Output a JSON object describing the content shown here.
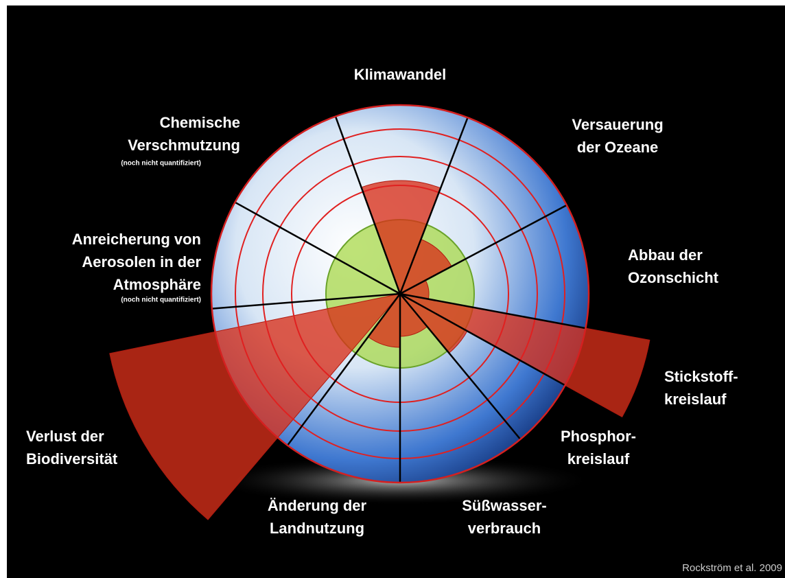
{
  "nodes": [
    {
      "lines": [
        "Klimawandel"
      ]
    },
    {
      "lines": [
        "Versauerung",
        "der Ozeane"
      ]
    },
    {
      "lines": [
        "Abbau der",
        "Ozonschicht"
      ]
    },
    {
      "lines": [
        "Stickstoff-",
        "kreislauf"
      ]
    },
    {
      "lines": [
        "Phosphor-",
        "kreislauf"
      ]
    },
    {
      "lines": [
        "Süßwasser-",
        "verbrauch"
      ]
    },
    {
      "lines": [
        "Änderung der",
        "Landnutzung"
      ]
    },
    {
      "lines": [
        "Verlust der",
        "Biodiversität"
      ]
    },
    {
      "lines": [
        "Anreicherung von",
        "Aerosolen in der",
        "Atmosphäre"
      ],
      "note": "(noch nicht quantifiziert)"
    },
    {
      "lines": [
        "Chemische",
        "Verschmutzung"
      ],
      "note": "(noch nicht quantifiziert)"
    }
  ],
  "credit": "Rockström et al. 2009"
}
